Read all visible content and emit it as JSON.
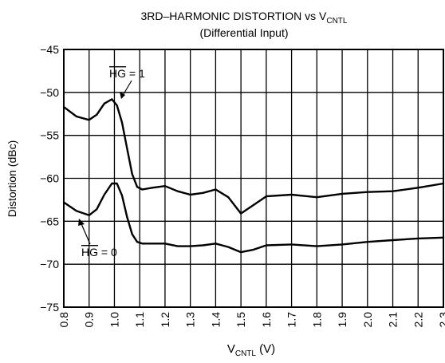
{
  "chart_data": {
    "type": "line",
    "title_main": "3RD–HARMONIC DISTORTION vs V",
    "title_sub": "CNTL",
    "subtitle": "(Differential Input)",
    "xlabel_main": "V",
    "xlabel_sub": "CNTL",
    "xlabel_unit": " (V)",
    "ylabel": "Distortion (dBc)",
    "xlim": [
      0.8,
      2.3
    ],
    "ylim": [
      -75,
      -45
    ],
    "xticks": [
      "0.8",
      "0.9",
      "1.0",
      "1.1",
      "1.2",
      "1.3",
      "1.4",
      "1.5",
      "1.6",
      "1.7",
      "1.8",
      "1.9",
      "2.0",
      "2.1",
      "2.2",
      "2.3"
    ],
    "yticks": [
      "−45",
      "−50",
      "−55",
      "−60",
      "−65",
      "−70",
      "−75"
    ],
    "grid": true,
    "series": [
      {
        "name": "HG = 1",
        "label_overline": "HG",
        "label_rest": " = 1",
        "x": [
          0.8,
          0.85,
          0.9,
          0.93,
          0.96,
          0.99,
          1.01,
          1.03,
          1.05,
          1.07,
          1.09,
          1.11,
          1.15,
          1.2,
          1.25,
          1.3,
          1.35,
          1.4,
          1.45,
          1.5,
          1.55,
          1.6,
          1.7,
          1.8,
          1.9,
          2.0,
          2.1,
          2.2,
          2.3
        ],
        "y": [
          -51.7,
          -52.8,
          -53.2,
          -52.6,
          -51.3,
          -50.8,
          -51.5,
          -53.5,
          -56.5,
          -59.5,
          -61.0,
          -61.3,
          -61.1,
          -60.9,
          -61.5,
          -61.9,
          -61.7,
          -61.3,
          -62.2,
          -64.1,
          -63.1,
          -62.1,
          -61.9,
          -62.2,
          -61.8,
          -61.6,
          -61.5,
          -61.1,
          -60.6
        ]
      },
      {
        "name": "HG = 0",
        "label_overline": "HG",
        "label_rest": " = 0",
        "x": [
          0.8,
          0.85,
          0.9,
          0.93,
          0.96,
          0.99,
          1.01,
          1.03,
          1.05,
          1.07,
          1.09,
          1.11,
          1.15,
          1.2,
          1.25,
          1.3,
          1.35,
          1.4,
          1.45,
          1.5,
          1.55,
          1.6,
          1.7,
          1.8,
          1.9,
          2.0,
          2.1,
          2.2,
          2.3
        ],
        "y": [
          -62.8,
          -63.8,
          -64.3,
          -63.6,
          -61.9,
          -60.6,
          -60.6,
          -62.0,
          -64.5,
          -66.5,
          -67.4,
          -67.6,
          -67.6,
          -67.6,
          -67.9,
          -67.9,
          -67.8,
          -67.6,
          -68.0,
          -68.6,
          -68.3,
          -67.8,
          -67.7,
          -67.9,
          -67.7,
          -67.4,
          -67.2,
          -67.0,
          -66.9
        ]
      }
    ]
  }
}
